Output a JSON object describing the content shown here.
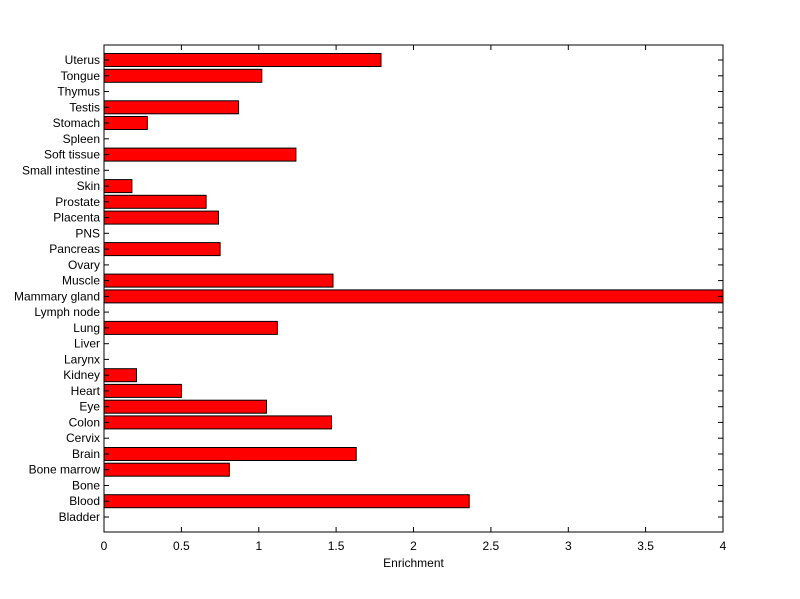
{
  "chart_data": {
    "type": "bar",
    "orientation": "horizontal",
    "categories": [
      "Bladder",
      "Blood",
      "Bone",
      "Bone marrow",
      "Brain",
      "Cervix",
      "Colon",
      "Eye",
      "Heart",
      "Kidney",
      "Larynx",
      "Liver",
      "Lung",
      "Lymph node",
      "Mammary gland",
      "Muscle",
      "Ovary",
      "Pancreas",
      "PNS",
      "Placenta",
      "Prostate",
      "Skin",
      "Small intestine",
      "Soft tissue",
      "Spleen",
      "Stomach",
      "Testis",
      "Thymus",
      "Tongue",
      "Uterus"
    ],
    "values": [
      0,
      2.36,
      0,
      0.81,
      1.63,
      0,
      1.47,
      1.05,
      0.5,
      0.21,
      0,
      0,
      1.12,
      0,
      4.0,
      1.48,
      0,
      0.75,
      0,
      0.74,
      0.66,
      0.18,
      0,
      1.24,
      0,
      0.28,
      0.87,
      0,
      1.02,
      1.79
    ],
    "xlabel": "Enrichment",
    "ylabel": "",
    "title": "",
    "xlim": [
      0,
      4
    ],
    "xticks": [
      "0",
      "0.5",
      "1",
      "1.5",
      "2",
      "2.5",
      "3",
      "3.5",
      "4"
    ],
    "bar_color": "#ff0000",
    "bar_edge_color": "#000000",
    "grid": false
  }
}
